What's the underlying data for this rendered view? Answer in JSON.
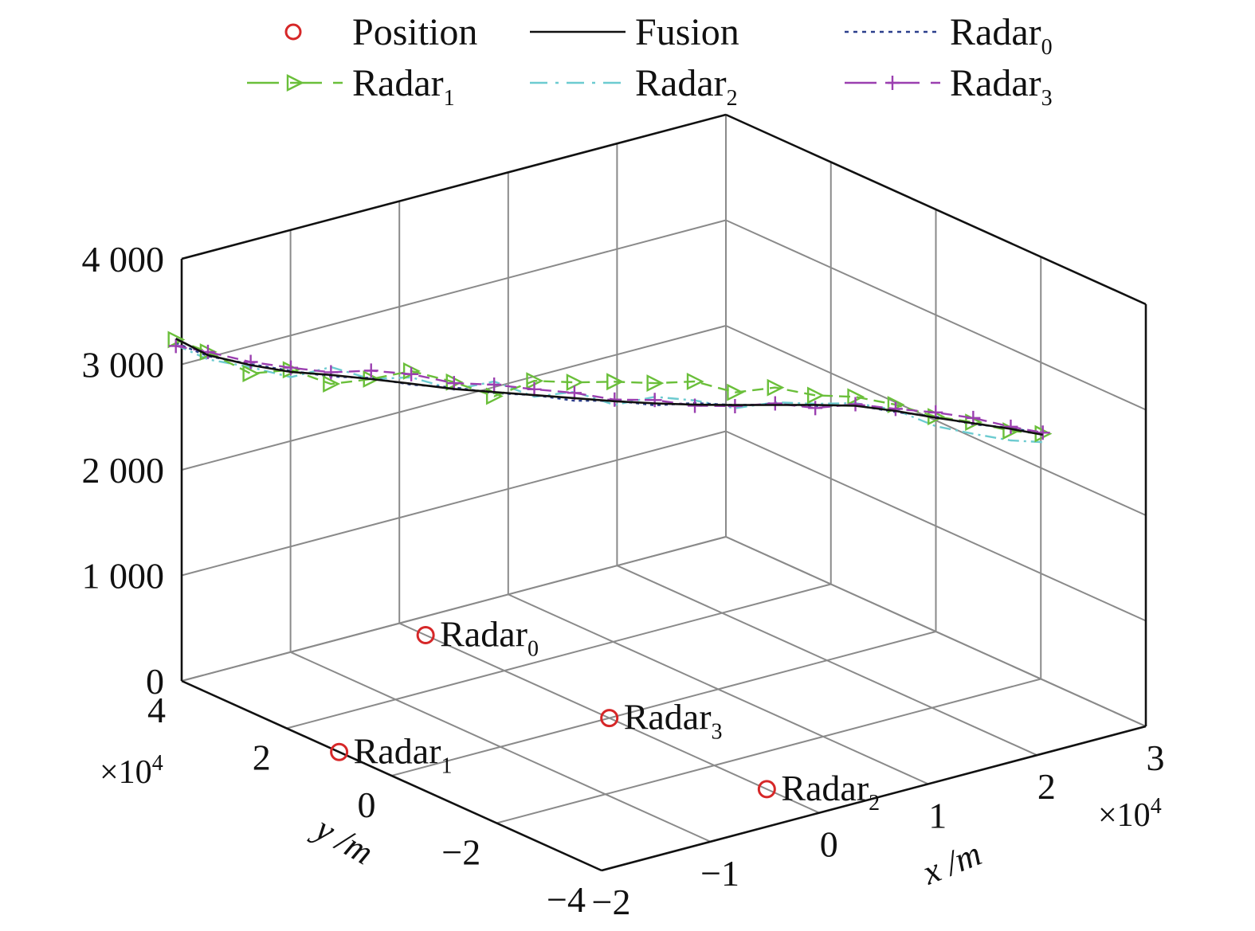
{
  "chart_data": {
    "type": "line",
    "projection": "3d",
    "legend_position": "top",
    "grid": true,
    "xlabel": "x /m",
    "ylabel": "y /m",
    "zlabel": "",
    "x_multiplier": "×10",
    "x_multiplier_exp": "4",
    "y_multiplier": "×10",
    "y_multiplier_exp": "4",
    "xlim": [
      -20000,
      30000
    ],
    "ylim": [
      -40000,
      40000
    ],
    "zlim": [
      0,
      4000
    ],
    "x_ticks": [
      {
        "value": -20000,
        "label": "−2"
      },
      {
        "value": -10000,
        "label": "−1"
      },
      {
        "value": 0,
        "label": "0"
      },
      {
        "value": 10000,
        "label": "1"
      },
      {
        "value": 20000,
        "label": "2"
      },
      {
        "value": 30000,
        "label": "3"
      }
    ],
    "y_ticks": [
      {
        "value": -40000,
        "label": "−4"
      },
      {
        "value": -20000,
        "label": "−2"
      },
      {
        "value": 0,
        "label": "0"
      },
      {
        "value": 20000,
        "label": "2"
      },
      {
        "value": 40000,
        "label": "4"
      }
    ],
    "z_ticks": [
      {
        "value": 0,
        "label": "0"
      },
      {
        "value": 1000,
        "label": "1 000"
      },
      {
        "value": 2000,
        "label": "2 000"
      },
      {
        "value": 3000,
        "label": "3 000"
      },
      {
        "value": 4000,
        "label": "4 000"
      }
    ],
    "legend": [
      {
        "key": "position",
        "label": "Position",
        "sub": "",
        "color": "#d62728",
        "style": "marker-o"
      },
      {
        "key": "fusion",
        "label": "Fusion",
        "sub": "",
        "color": "#111111",
        "style": "solid"
      },
      {
        "key": "radar0",
        "label": "Radar",
        "sub": "0",
        "color": "#2b3f8c",
        "style": "dotted"
      },
      {
        "key": "radar1",
        "label": "Radar",
        "sub": "1",
        "color": "#6abf3a",
        "style": "dashed-triangle"
      },
      {
        "key": "radar2",
        "label": "Radar",
        "sub": "2",
        "color": "#6ccbd0",
        "style": "dashdot"
      },
      {
        "key": "radar3",
        "label": "Radar",
        "sub": "3",
        "color": "#9b3fb0",
        "style": "dashed-plus"
      }
    ],
    "radar_positions": [
      {
        "name": "Radar",
        "sub": "0",
        "x": 0,
        "y": 35000,
        "z": 0
      },
      {
        "name": "Radar",
        "sub": "1",
        "x": -20000,
        "y": 10000,
        "z": 0
      },
      {
        "name": "Radar",
        "sub": "2",
        "x": 0,
        "y": -30000,
        "z": 0
      },
      {
        "name": "Radar",
        "sub": "3",
        "x": 0,
        "y": 0,
        "z": 0
      }
    ],
    "trajectory": {
      "x": [
        -21500,
        -20000,
        -18000,
        -16000,
        -14000,
        -12000,
        -10000,
        -8000,
        -6000,
        -4000,
        -2000,
        0,
        2000,
        4000,
        6000,
        8000,
        10000,
        12000,
        14000,
        16000,
        18000,
        20000,
        21500
      ],
      "y": [
        38000,
        35000,
        31000,
        27500,
        24000,
        20500,
        17000,
        13000,
        9500,
        6000,
        2500,
        -1000,
        -4500,
        -8000,
        -11500,
        -15000,
        -18500,
        -22000,
        -25500,
        -29000,
        -32000,
        -35000,
        -38000
      ],
      "series": [
        {
          "key": "fusion",
          "name": "Fusion",
          "z": [
            3330,
            3200,
            3140,
            3100,
            3095,
            3080,
            3060,
            3045,
            3040,
            3035,
            3030,
            3025,
            3028,
            3040,
            3060,
            3085,
            3110,
            3125,
            3100,
            3060,
            3020,
            2980,
            2950
          ]
        },
        {
          "key": "radar0",
          "name": "Radar0",
          "z": [
            3290,
            3190,
            3150,
            3110,
            3080,
            3090,
            3050,
            3060,
            3030,
            3035,
            3005,
            3030,
            3010,
            3055,
            3060,
            3090,
            3100,
            3130,
            3090,
            3070,
            3010,
            2990,
            2960
          ]
        },
        {
          "key": "radar1",
          "name": "Radar1",
          "z": [
            3320,
            3230,
            3060,
            3120,
            3010,
            3080,
            3180,
            3110,
            3000,
            3170,
            3180,
            3210,
            3220,
            3260,
            3180,
            3250,
            3200,
            3210,
            3160,
            3070,
            3030,
            2960,
            2960
          ]
        },
        {
          "key": "radar2",
          "name": "Radar2",
          "z": [
            3270,
            3160,
            3120,
            3050,
            3170,
            3080,
            3120,
            3040,
            3140,
            3020,
            3090,
            2990,
            3090,
            3080,
            3030,
            3110,
            3120,
            3150,
            3110,
            2980,
            2920,
            2870,
            2880
          ]
        },
        {
          "key": "radar3",
          "name": "Radar3",
          "z": [
            3260,
            3230,
            3170,
            3140,
            3120,
            3160,
            3150,
            3100,
            3110,
            3090,
            3080,
            3040,
            3060,
            3030,
            3050,
            3100,
            3080,
            3140,
            3120,
            3110,
            3070,
            3000,
            2970
          ]
        }
      ]
    }
  }
}
